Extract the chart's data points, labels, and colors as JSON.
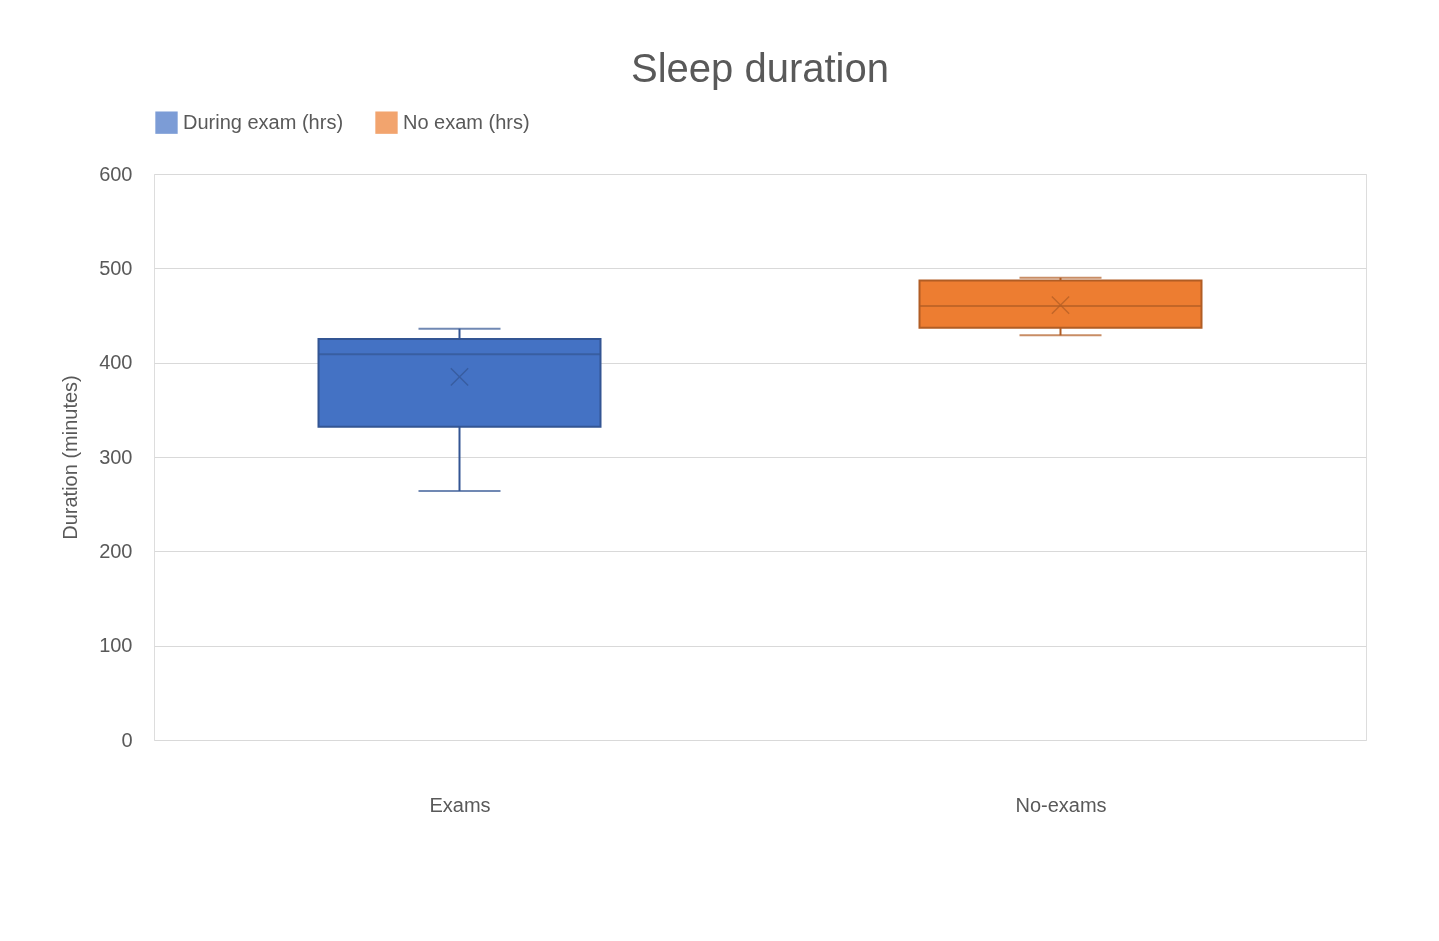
{
  "chart_data": {
    "type": "box",
    "title": "Sleep duration",
    "ylabel": "Duration (minutes)",
    "categories": [
      "Exams",
      "No-exams"
    ],
    "series": [
      {
        "name": "During exam (hrs)",
        "color": "#4472c4",
        "boxes": [
          {
            "low": 264,
            "q1": 332,
            "median": 409,
            "q3": 425,
            "high": 436,
            "mean": 385
          },
          null
        ]
      },
      {
        "name": "No exam (hrs)",
        "color": "#ed7d31",
        "boxes": [
          null,
          {
            "low": 429,
            "q1": 437,
            "median": 460,
            "q3": 487,
            "high": 490,
            "mean": 461
          }
        ]
      }
    ],
    "ylim": [
      0,
      600
    ],
    "yticks": [
      0,
      100,
      200,
      300,
      400,
      500,
      600
    ],
    "grid": "y",
    "legend": "top",
    "marker": "cross"
  }
}
